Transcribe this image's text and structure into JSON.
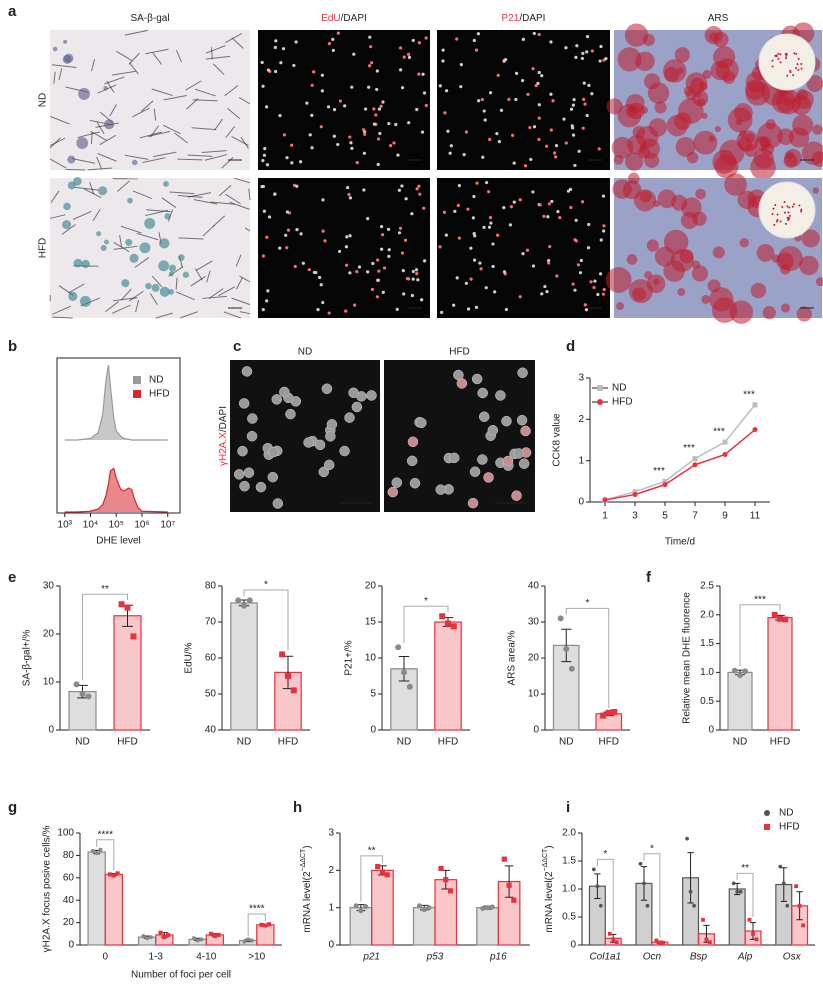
{
  "panel_labels": [
    "a",
    "b",
    "c",
    "d",
    "e",
    "f",
    "g",
    "h",
    "i"
  ],
  "panel_a": {
    "columns": [
      [
        "SA-β-gal"
      ],
      [
        "EdU",
        "/DAPI"
      ],
      [
        "P21",
        "/DAPI"
      ],
      [
        "ARS"
      ]
    ],
    "rows": [
      "ND",
      "HFD"
    ]
  },
  "panel_c": {
    "columns": [
      "ND",
      "HFD"
    ],
    "ylabel": [
      "γH2A.X",
      "/DAPI"
    ]
  },
  "chart_data": [
    {
      "type": "density",
      "xlabel": "DHE level",
      "xlog": true,
      "xlim": [
        500,
        30000000
      ],
      "xticks": [
        {
          "value": 1000,
          "label": "10³"
        },
        {
          "value": 10000,
          "label": "10⁴"
        },
        {
          "value": 100000,
          "label": "10⁵"
        },
        {
          "value": 1000000,
          "label": "10⁶"
        },
        {
          "value": 10000000,
          "label": "10⁷"
        }
      ],
      "x": [
        1000,
        3000,
        10000,
        20000,
        30000,
        40000,
        50000,
        60000,
        80000,
        100000,
        150000,
        200000,
        300000,
        400000,
        500000,
        700000,
        1000000,
        10000000
      ],
      "series": [
        {
          "name": "ND",
          "color": "#9a9a9a",
          "values": [
            0,
            0,
            2,
            10,
            35,
            80,
            100,
            70,
            30,
            12,
            5,
            2,
            1,
            0,
            0,
            0,
            0,
            0
          ]
        },
        {
          "name": "HFD",
          "color": "#d7262e",
          "values": [
            0,
            0,
            1,
            4,
            10,
            22,
            38,
            55,
            58,
            45,
            30,
            28,
            32,
            30,
            18,
            6,
            1,
            0
          ]
        }
      ],
      "legend": "upper right"
    },
    {
      "type": "line",
      "xlabel": "Time/d",
      "ylabel": "CCK8 value",
      "x": [
        1,
        3,
        5,
        7,
        9,
        11
      ],
      "xlim": [
        0,
        12
      ],
      "xticks": [
        1,
        3,
        5,
        7,
        9,
        11
      ],
      "ylim": [
        0,
        3
      ],
      "yticks": [
        0,
        1,
        2,
        3
      ],
      "series": [
        {
          "name": "ND",
          "color": "#bdbdbd",
          "marker": "square",
          "values": [
            0.05,
            0.25,
            0.5,
            1.05,
            1.45,
            2.35
          ]
        },
        {
          "name": "HFD",
          "color": "#e8313c",
          "marker": "circle",
          "values": [
            0.05,
            0.18,
            0.42,
            0.9,
            1.15,
            1.75
          ]
        }
      ],
      "significance": [
        null,
        null,
        "***",
        "***",
        "***",
        "***"
      ],
      "legend": "upper left"
    },
    {
      "type": "bar",
      "ylabel": "SA-β-gal+/%",
      "categories": [
        "ND",
        "HFD"
      ],
      "values": [
        8,
        23.8
      ],
      "errors": [
        1.3,
        2.2
      ],
      "points": [
        [
          9.5,
          7.5,
          7
        ],
        [
          26.2,
          25.5,
          19.5
        ]
      ],
      "colors": [
        "#8a8a8a",
        "#e8313c"
      ],
      "markers": [
        "circle",
        "square"
      ],
      "ylim": [
        0,
        30
      ],
      "yticks": [
        0,
        10,
        20,
        30
      ],
      "significance": "**"
    },
    {
      "type": "bar",
      "ylabel": "EdU/%",
      "categories": [
        "ND",
        "HFD"
      ],
      "values": [
        75.3,
        56
      ],
      "errors": [
        0.8,
        4.5
      ],
      "points": [
        [
          76,
          74.5,
          76
        ],
        [
          61,
          55,
          51
        ]
      ],
      "colors": [
        "#8a8a8a",
        "#e8313c"
      ],
      "markers": [
        "circle",
        "square"
      ],
      "ylim": [
        40,
        80
      ],
      "yticks": [
        40,
        50,
        60,
        70,
        80
      ],
      "significance": "*"
    },
    {
      "type": "bar",
      "ylabel": "P21+/%",
      "categories": [
        "ND",
        "HFD"
      ],
      "values": [
        8.5,
        15
      ],
      "errors": [
        1.7,
        0.6
      ],
      "points": [
        [
          11.5,
          8,
          6
        ],
        [
          15.8,
          14.8,
          14.4
        ]
      ],
      "colors": [
        "#8a8a8a",
        "#e8313c"
      ],
      "markers": [
        "circle",
        "square"
      ],
      "ylim": [
        0,
        20
      ],
      "yticks": [
        0,
        5,
        10,
        15,
        20
      ],
      "significance": "*"
    },
    {
      "type": "bar",
      "ylabel": "ARS area/%",
      "categories": [
        "ND",
        "HFD"
      ],
      "values": [
        23.5,
        4.5
      ],
      "errors": [
        4.5,
        0.5
      ],
      "points": [
        [
          31,
          22.5,
          17
        ],
        [
          4,
          4.8,
          5
        ]
      ],
      "colors": [
        "#8a8a8a",
        "#e8313c"
      ],
      "markers": [
        "circle",
        "square"
      ],
      "ylim": [
        0,
        40
      ],
      "yticks": [
        0,
        10,
        20,
        30,
        40
      ],
      "significance": "*"
    },
    {
      "type": "bar",
      "ylabel": "Relative mean DHE fluorence",
      "categories": [
        "ND",
        "HFD"
      ],
      "values": [
        1.0,
        1.95
      ],
      "errors": [
        0.04,
        0.04
      ],
      "points": [
        [
          1.03,
          0.95,
          1.02
        ],
        [
          2.0,
          1.93,
          1.92
        ]
      ],
      "colors": [
        "#8a8a8a",
        "#e8313c"
      ],
      "markers": [
        "circle",
        "square"
      ],
      "ylim": [
        0,
        2.5
      ],
      "yticks": [
        0,
        0.5,
        {
          "value": 1,
          "label": "1.0"
        },
        1.5,
        {
          "value": 2,
          "label": "2.0"
        },
        2.5
      ],
      "significance": "***"
    },
    {
      "type": "bar",
      "xlabel": "Number of foci per cell",
      "ylabel": "γH2A.X focus posive cells/%",
      "categories": [
        "0",
        "1-3",
        "4-10",
        ">10"
      ],
      "series": [
        {
          "name": "ND",
          "color": "#8a8a8a",
          "marker": "circle",
          "values": [
            83,
            7,
            5,
            4
          ],
          "errors": [
            1.5,
            1,
            1,
            1
          ],
          "points": [
            [
              84,
              82,
              85
            ],
            [
              8,
              6,
              7
            ],
            [
              6,
              4,
              5
            ],
            [
              3,
              5,
              4
            ]
          ]
        },
        {
          "name": "HFD",
          "color": "#e8313c",
          "marker": "square",
          "values": [
            63,
            9,
            9,
            18
          ],
          "errors": [
            0.8,
            2,
            1,
            0.8
          ],
          "points": [
            [
              63,
              62,
              64
            ],
            [
              11,
              7,
              9
            ],
            [
              10,
              8,
              9
            ],
            [
              18,
              17.5,
              18.5
            ]
          ]
        }
      ],
      "ylim": [
        0,
        100
      ],
      "yticks": [
        0,
        20,
        40,
        60,
        80,
        100
      ],
      "significance": [
        "****",
        null,
        null,
        "****"
      ]
    },
    {
      "type": "bar",
      "ylabel": [
        "mRNA level(2",
        "−ΔΔCT",
        ")"
      ],
      "categories": [
        "p21",
        "p53",
        "p16"
      ],
      "italic": true,
      "series": [
        {
          "name": "ND",
          "color": "#8a8a8a",
          "marker": "circle",
          "values": [
            1.0,
            1.0,
            1.0
          ],
          "errors": [
            0.08,
            0.06,
            0.04
          ],
          "points": [
            [
              1.05,
              0.92,
              1.03
            ],
            [
              1.05,
              0.95,
              1.0
            ],
            [
              0.98,
              1.0,
              1.02
            ]
          ]
        },
        {
          "name": "HFD",
          "color": "#e8313c",
          "marker": "square",
          "values": [
            2.0,
            1.75,
            1.7
          ],
          "errors": [
            0.12,
            0.25,
            0.42
          ],
          "points": [
            [
              2.1,
              1.95,
              1.88
            ],
            [
              2.05,
              1.75,
              1.45
            ],
            [
              2.3,
              1.6,
              1.2
            ]
          ]
        }
      ],
      "ylim": [
        0,
        3
      ],
      "yticks": [
        0,
        1,
        2,
        3
      ],
      "significance": [
        "**",
        null,
        null
      ]
    },
    {
      "type": "bar",
      "ylabel": [
        "mRNA level(2",
        "−ΔΔCT",
        ")"
      ],
      "categories": [
        "Col1a1",
        "Ocn",
        "Bsp",
        "Alp",
        "Osx"
      ],
      "italic": true,
      "series": [
        {
          "name": "ND",
          "color": "#555555",
          "marker": "circle",
          "values": [
            1.05,
            1.1,
            1.2,
            1.0,
            1.08
          ],
          "errors": [
            0.22,
            0.3,
            0.45,
            0.1,
            0.3
          ],
          "points": [
            [
              1.35,
              1.05,
              0.7
            ],
            [
              1.45,
              1.1,
              0.7
            ],
            [
              1.9,
              0.95,
              0.7
            ],
            [
              1.1,
              0.95,
              0.95
            ],
            [
              1.4,
              1.1,
              0.7
            ]
          ]
        },
        {
          "name": "HFD",
          "color": "#e8313c",
          "marker": "square",
          "values": [
            0.12,
            0.05,
            0.2,
            0.25,
            0.7
          ],
          "errors": [
            0.07,
            0.02,
            0.15,
            0.15,
            0.25
          ],
          "points": [
            [
              0.2,
              0.1,
              0.05
            ],
            [
              0.08,
              0.04,
              0.04
            ],
            [
              0.45,
              0.1,
              0.05
            ],
            [
              0.45,
              0.2,
              0.1
            ],
            [
              1.05,
              0.7,
              0.35
            ]
          ]
        }
      ],
      "ylim": [
        0,
        2
      ],
      "yticks": [
        0,
        0.5,
        {
          "value": 1,
          "label": "1.0"
        },
        1.5,
        {
          "value": 2,
          "label": "2.0"
        }
      ],
      "significance": [
        "*",
        "*",
        null,
        "**",
        null
      ],
      "legend": "upper right"
    }
  ]
}
